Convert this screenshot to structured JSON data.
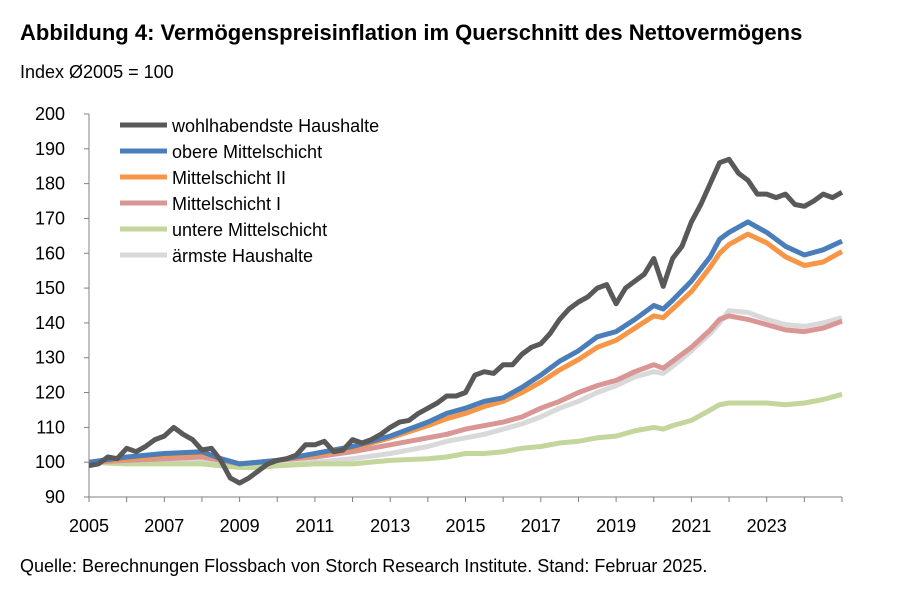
{
  "title": "Abbildung 4: Vermögenspreisinflation im Querschnitt des Nettovermögens",
  "subtitle": "Index Ø2005 = 100",
  "source": "Quelle: Berechnungen Flossbach von Storch Research Institute. Stand: Februar 2025.",
  "chart_data": {
    "type": "line",
    "ylim": [
      90,
      200
    ],
    "yticks": [
      90,
      100,
      110,
      120,
      130,
      140,
      150,
      160,
      170,
      180,
      190,
      200
    ],
    "xlim": [
      2005,
      2024.75
    ],
    "xticks": [
      2005,
      2007,
      2009,
      2011,
      2013,
      2015,
      2017,
      2019,
      2021,
      2023
    ],
    "xtick_labels": [
      "2005",
      "2007",
      "2009",
      "2011",
      "2013",
      "2015",
      "2017",
      "2019",
      "2021",
      "2023"
    ],
    "legend_position": "top-left",
    "series": [
      {
        "name": "wohlhabendste Haushalte",
        "color": "#595959",
        "points": [
          [
            2005,
            99
          ],
          [
            2005.25,
            99.5
          ],
          [
            2005.5,
            101.5
          ],
          [
            2005.75,
            101
          ],
          [
            2006,
            104
          ],
          [
            2006.25,
            103
          ],
          [
            2006.5,
            104.5
          ],
          [
            2006.75,
            106.5
          ],
          [
            2007,
            107.5
          ],
          [
            2007.25,
            110
          ],
          [
            2007.5,
            108
          ],
          [
            2007.75,
            106.5
          ],
          [
            2008,
            103.5
          ],
          [
            2008.25,
            104
          ],
          [
            2008.5,
            100.5
          ],
          [
            2008.75,
            95.5
          ],
          [
            2009,
            94
          ],
          [
            2009.25,
            95.5
          ],
          [
            2009.5,
            97.5
          ],
          [
            2009.75,
            99.5
          ],
          [
            2010,
            100.5
          ],
          [
            2010.25,
            101
          ],
          [
            2010.5,
            102
          ],
          [
            2010.75,
            105
          ],
          [
            2011,
            105
          ],
          [
            2011.25,
            106
          ],
          [
            2011.5,
            103
          ],
          [
            2011.75,
            103.5
          ],
          [
            2012,
            106.5
          ],
          [
            2012.25,
            105.5
          ],
          [
            2012.5,
            106.5
          ],
          [
            2012.75,
            108
          ],
          [
            2013,
            110
          ],
          [
            2013.25,
            111.5
          ],
          [
            2013.5,
            112
          ],
          [
            2013.75,
            114
          ],
          [
            2014,
            115.5
          ],
          [
            2014.25,
            117
          ],
          [
            2014.5,
            119
          ],
          [
            2014.75,
            119
          ],
          [
            2015,
            120
          ],
          [
            2015.25,
            125
          ],
          [
            2015.5,
            126
          ],
          [
            2015.75,
            125.5
          ],
          [
            2016,
            128
          ],
          [
            2016.25,
            128
          ],
          [
            2016.5,
            131
          ],
          [
            2016.75,
            133
          ],
          [
            2017,
            134
          ],
          [
            2017.25,
            137
          ],
          [
            2017.5,
            141
          ],
          [
            2017.75,
            144
          ],
          [
            2018,
            146
          ],
          [
            2018.25,
            147.5
          ],
          [
            2018.5,
            150
          ],
          [
            2018.75,
            151
          ],
          [
            2019,
            145.5
          ],
          [
            2019.25,
            150
          ],
          [
            2019.5,
            152
          ],
          [
            2019.75,
            154
          ],
          [
            2020,
            158.5
          ],
          [
            2020.25,
            150.5
          ],
          [
            2020.5,
            158.5
          ],
          [
            2020.75,
            162
          ],
          [
            2021,
            169
          ],
          [
            2021.25,
            174
          ],
          [
            2021.5,
            180
          ],
          [
            2021.75,
            186
          ],
          [
            2022,
            187
          ],
          [
            2022.25,
            183
          ],
          [
            2022.5,
            181
          ],
          [
            2022.75,
            177
          ],
          [
            2023,
            177
          ],
          [
            2023.25,
            176
          ],
          [
            2023.5,
            177
          ],
          [
            2023.75,
            174
          ],
          [
            2024,
            173.5
          ],
          [
            2024.25,
            175
          ],
          [
            2024.5,
            177
          ],
          [
            2024.75,
            176
          ],
          [
            2025,
            177.5
          ]
        ]
      },
      {
        "name": "obere Mittelschicht",
        "color": "#4a7ebb",
        "points": [
          [
            2005,
            100
          ],
          [
            2006,
            101.5
          ],
          [
            2007,
            102.5
          ],
          [
            2008,
            103
          ],
          [
            2008.5,
            101
          ],
          [
            2009,
            99.5
          ],
          [
            2009.5,
            100
          ],
          [
            2010,
            100.5
          ],
          [
            2011,
            102.5
          ],
          [
            2012,
            104.5
          ],
          [
            2013,
            107.5
          ],
          [
            2014,
            111.5
          ],
          [
            2014.5,
            114
          ],
          [
            2015,
            115.5
          ],
          [
            2015.5,
            117.5
          ],
          [
            2016,
            118.5
          ],
          [
            2016.5,
            121.5
          ],
          [
            2017,
            125
          ],
          [
            2017.5,
            129
          ],
          [
            2018,
            132
          ],
          [
            2018.5,
            136
          ],
          [
            2019,
            137.5
          ],
          [
            2019.5,
            141
          ],
          [
            2020,
            145
          ],
          [
            2020.25,
            144
          ],
          [
            2020.5,
            146.5
          ],
          [
            2021,
            152
          ],
          [
            2021.5,
            159
          ],
          [
            2021.75,
            164
          ],
          [
            2022,
            166
          ],
          [
            2022.5,
            169
          ],
          [
            2023,
            166
          ],
          [
            2023.5,
            162
          ],
          [
            2024,
            159.5
          ],
          [
            2024.5,
            161
          ],
          [
            2025,
            163.5
          ]
        ]
      },
      {
        "name": "Mittelschicht II",
        "color": "#f79646",
        "points": [
          [
            2005,
            100
          ],
          [
            2006,
            101
          ],
          [
            2007,
            102
          ],
          [
            2008,
            102.5
          ],
          [
            2008.5,
            101
          ],
          [
            2009,
            99.5
          ],
          [
            2009.5,
            100
          ],
          [
            2010,
            100.5
          ],
          [
            2011,
            102
          ],
          [
            2012,
            104
          ],
          [
            2013,
            107
          ],
          [
            2014,
            110.5
          ],
          [
            2014.5,
            112.5
          ],
          [
            2015,
            114
          ],
          [
            2015.5,
            116
          ],
          [
            2016,
            117.5
          ],
          [
            2016.5,
            120
          ],
          [
            2017,
            123
          ],
          [
            2017.5,
            126.5
          ],
          [
            2018,
            129.5
          ],
          [
            2018.5,
            133
          ],
          [
            2019,
            135
          ],
          [
            2019.5,
            138.5
          ],
          [
            2020,
            142
          ],
          [
            2020.25,
            141.5
          ],
          [
            2020.5,
            144
          ],
          [
            2021,
            149
          ],
          [
            2021.5,
            156
          ],
          [
            2021.75,
            160
          ],
          [
            2022,
            162.5
          ],
          [
            2022.5,
            165.5
          ],
          [
            2023,
            163
          ],
          [
            2023.5,
            159
          ],
          [
            2024,
            156.5
          ],
          [
            2024.5,
            157.5
          ],
          [
            2025,
            160.5
          ]
        ]
      },
      {
        "name": "Mittelschicht I",
        "color": "#d99694",
        "points": [
          [
            2005,
            100
          ],
          [
            2006,
            100.5
          ],
          [
            2007,
            101
          ],
          [
            2008,
            101.5
          ],
          [
            2008.5,
            100.5
          ],
          [
            2009,
            99.5
          ],
          [
            2009.5,
            100
          ],
          [
            2010,
            100.5
          ],
          [
            2011,
            101.5
          ],
          [
            2012,
            103
          ],
          [
            2013,
            105
          ],
          [
            2014,
            107
          ],
          [
            2014.5,
            108
          ],
          [
            2015,
            109.5
          ],
          [
            2015.5,
            110.5
          ],
          [
            2016,
            111.5
          ],
          [
            2016.5,
            113
          ],
          [
            2017,
            115.5
          ],
          [
            2017.5,
            117.5
          ],
          [
            2018,
            120
          ],
          [
            2018.5,
            122
          ],
          [
            2019,
            123.5
          ],
          [
            2019.5,
            126
          ],
          [
            2020,
            128
          ],
          [
            2020.25,
            127
          ],
          [
            2020.5,
            129
          ],
          [
            2021,
            133
          ],
          [
            2021.5,
            138
          ],
          [
            2021.75,
            141
          ],
          [
            2022,
            142
          ],
          [
            2022.5,
            141
          ],
          [
            2023,
            139.5
          ],
          [
            2023.5,
            138
          ],
          [
            2024,
            137.5
          ],
          [
            2024.5,
            138.5
          ],
          [
            2025,
            140.5
          ]
        ]
      },
      {
        "name": "untere Mittelschicht",
        "color": "#c3d69b",
        "points": [
          [
            2005,
            100
          ],
          [
            2006,
            99.5
          ],
          [
            2007,
            99.5
          ],
          [
            2008,
            99.5
          ],
          [
            2008.5,
            99
          ],
          [
            2009,
            98.5
          ],
          [
            2009.5,
            98.5
          ],
          [
            2010,
            99
          ],
          [
            2011,
            99.5
          ],
          [
            2012,
            99.5
          ],
          [
            2013,
            100.5
          ],
          [
            2014,
            101
          ],
          [
            2014.5,
            101.5
          ],
          [
            2015,
            102.5
          ],
          [
            2015.5,
            102.5
          ],
          [
            2016,
            103
          ],
          [
            2016.5,
            104
          ],
          [
            2017,
            104.5
          ],
          [
            2017.5,
            105.5
          ],
          [
            2018,
            106
          ],
          [
            2018.5,
            107
          ],
          [
            2019,
            107.5
          ],
          [
            2019.5,
            109
          ],
          [
            2020,
            110
          ],
          [
            2020.25,
            109.5
          ],
          [
            2020.5,
            110.5
          ],
          [
            2021,
            112
          ],
          [
            2021.5,
            115
          ],
          [
            2021.75,
            116.5
          ],
          [
            2022,
            117
          ],
          [
            2022.5,
            117
          ],
          [
            2023,
            117
          ],
          [
            2023.5,
            116.5
          ],
          [
            2024,
            117
          ],
          [
            2024.5,
            118
          ],
          [
            2025,
            119.5
          ]
        ]
      },
      {
        "name": "ärmste Haushalte",
        "color": "#d9d9d9",
        "points": [
          [
            2005,
            100
          ],
          [
            2006,
            100
          ],
          [
            2007,
            100
          ],
          [
            2008,
            100
          ],
          [
            2008.5,
            99.5
          ],
          [
            2009,
            98.5
          ],
          [
            2009.5,
            98.5
          ],
          [
            2010,
            99
          ],
          [
            2011,
            100
          ],
          [
            2012,
            101
          ],
          [
            2013,
            102.5
          ],
          [
            2014,
            104.5
          ],
          [
            2014.5,
            106
          ],
          [
            2015,
            107
          ],
          [
            2015.5,
            108
          ],
          [
            2016,
            109.5
          ],
          [
            2016.5,
            111
          ],
          [
            2017,
            113
          ],
          [
            2017.5,
            115.5
          ],
          [
            2018,
            117.5
          ],
          [
            2018.5,
            120
          ],
          [
            2019,
            122
          ],
          [
            2019.5,
            124.5
          ],
          [
            2020,
            126
          ],
          [
            2020.25,
            125.5
          ],
          [
            2020.5,
            127.5
          ],
          [
            2021,
            132
          ],
          [
            2021.5,
            137
          ],
          [
            2021.75,
            140
          ],
          [
            2022,
            143.5
          ],
          [
            2022.5,
            143
          ],
          [
            2023,
            141
          ],
          [
            2023.5,
            139.5
          ],
          [
            2024,
            139
          ],
          [
            2024.5,
            140
          ],
          [
            2025,
            141.5
          ]
        ]
      }
    ]
  }
}
